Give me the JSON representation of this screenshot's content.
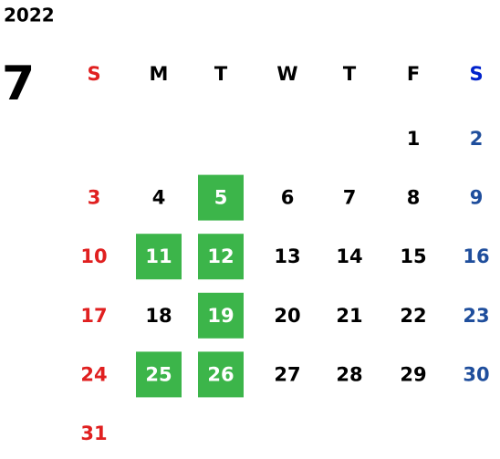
{
  "year": "2022",
  "month": "7",
  "weekdays": [
    "S",
    "M",
    "T",
    "W",
    "T",
    "F",
    "S"
  ],
  "weeks": [
    [
      null,
      null,
      null,
      null,
      null,
      {
        "day": "1"
      },
      {
        "day": "2"
      }
    ],
    [
      {
        "day": "3"
      },
      {
        "day": "4"
      },
      {
        "day": "5",
        "highlight": true
      },
      {
        "day": "6"
      },
      {
        "day": "7"
      },
      {
        "day": "8"
      },
      {
        "day": "9"
      }
    ],
    [
      {
        "day": "10"
      },
      {
        "day": "11",
        "highlight": true
      },
      {
        "day": "12",
        "highlight": true
      },
      {
        "day": "13"
      },
      {
        "day": "14"
      },
      {
        "day": "15"
      },
      {
        "day": "16"
      }
    ],
    [
      {
        "day": "17"
      },
      {
        "day": "18"
      },
      {
        "day": "19",
        "highlight": true
      },
      {
        "day": "20"
      },
      {
        "day": "21"
      },
      {
        "day": "22"
      },
      {
        "day": "23"
      }
    ],
    [
      {
        "day": "24"
      },
      {
        "day": "25",
        "highlight": true
      },
      {
        "day": "26",
        "highlight": true
      },
      {
        "day": "27"
      },
      {
        "day": "28"
      },
      {
        "day": "29"
      },
      {
        "day": "30"
      }
    ],
    [
      {
        "day": "31"
      },
      null,
      null,
      null,
      null,
      null,
      null
    ]
  ]
}
